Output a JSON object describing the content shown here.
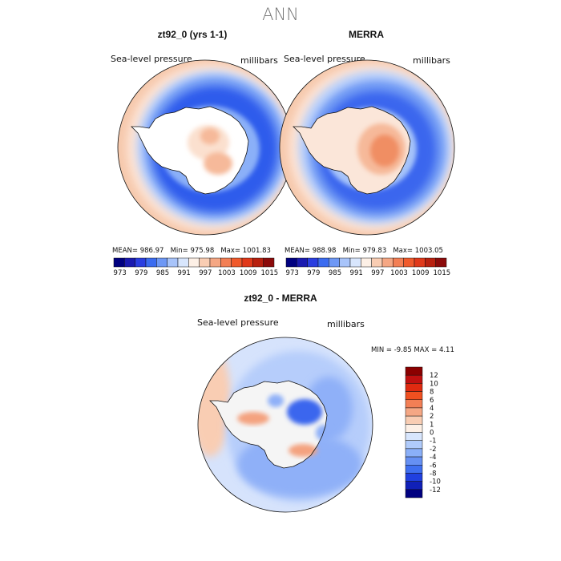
{
  "figure_title": "ANN",
  "panels": [
    {
      "title": "zt92_0 (yrs 1-1)",
      "variable": "Sea-level pressure",
      "units": "millibars",
      "stats": {
        "mean_label": "MEAN=",
        "mean": "986.97",
        "min_label": "Min=",
        "min": "975.98",
        "max_label": "Max=",
        "max": "1001.83"
      }
    },
    {
      "title": "MERRA",
      "variable": "Sea-level pressure",
      "units": "millibars",
      "stats": {
        "mean_label": "MEAN=",
        "mean": "988.98",
        "min_label": "Min=",
        "min": "979.83",
        "max_label": "Max=",
        "max": "1003.05"
      }
    },
    {
      "title": "zt92_0 - MERRA",
      "variable": "Sea-level pressure",
      "units": "millibars",
      "stats": {
        "min_label": "MIN =",
        "min": "-9.85",
        "max_label": "MAX =",
        "max": "4.11"
      }
    }
  ],
  "colorbar_top": {
    "colors": [
      "#000080",
      "#1a1ab0",
      "#2a3ee0",
      "#3b6cf0",
      "#6e98f5",
      "#a8c4fa",
      "#d8e6fd",
      "#fdf0e6",
      "#f9cdb3",
      "#f5a784",
      "#f37f55",
      "#f05a2c",
      "#e0391a",
      "#b8200f",
      "#8b0a0a"
    ],
    "tick_labels": [
      "973",
      "979",
      "985",
      "991",
      "997",
      "1003",
      "1009",
      "1015"
    ]
  },
  "colorbar_diff": {
    "colors": [
      "#8b0000",
      "#c01010",
      "#e02a10",
      "#f05020",
      "#f37f55",
      "#f5a784",
      "#f9cdb3",
      "#fdf0e6",
      "#d8e6fd",
      "#b0cbfb",
      "#8aafF8",
      "#6690f3",
      "#3f6ff0",
      "#2040e0",
      "#1020b8",
      "#000080"
    ],
    "tick_labels": [
      "12",
      "10",
      "8",
      "6",
      "4",
      "2",
      "1",
      "0",
      "-1",
      "-2",
      "-4",
      "-6",
      "-8",
      "-10",
      "-12"
    ]
  }
}
